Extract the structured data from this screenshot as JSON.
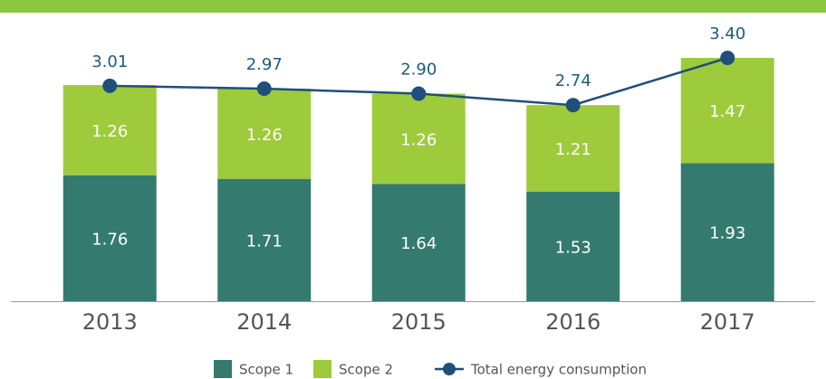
{
  "chart_data": {
    "type": "stacked-bar-line",
    "categories": [
      "2013",
      "2014",
      "2015",
      "2016",
      "2017"
    ],
    "series": [
      {
        "name": "Scope 1",
        "type": "bar",
        "color": "#357a6e",
        "values": [
          1.76,
          1.71,
          1.64,
          1.53,
          1.93
        ]
      },
      {
        "name": "Scope 2",
        "type": "bar",
        "color": "#9dcb3c",
        "values": [
          1.26,
          1.26,
          1.26,
          1.21,
          1.47
        ]
      },
      {
        "name": "Total energy consumption",
        "type": "line",
        "color": "#1f4f7a",
        "values": [
          3.01,
          2.97,
          2.9,
          2.74,
          3.4
        ],
        "value_labels": [
          "3.01",
          "2.97",
          "2.90",
          "2.74",
          "3.40"
        ]
      }
    ],
    "legend": "bottom"
  }
}
